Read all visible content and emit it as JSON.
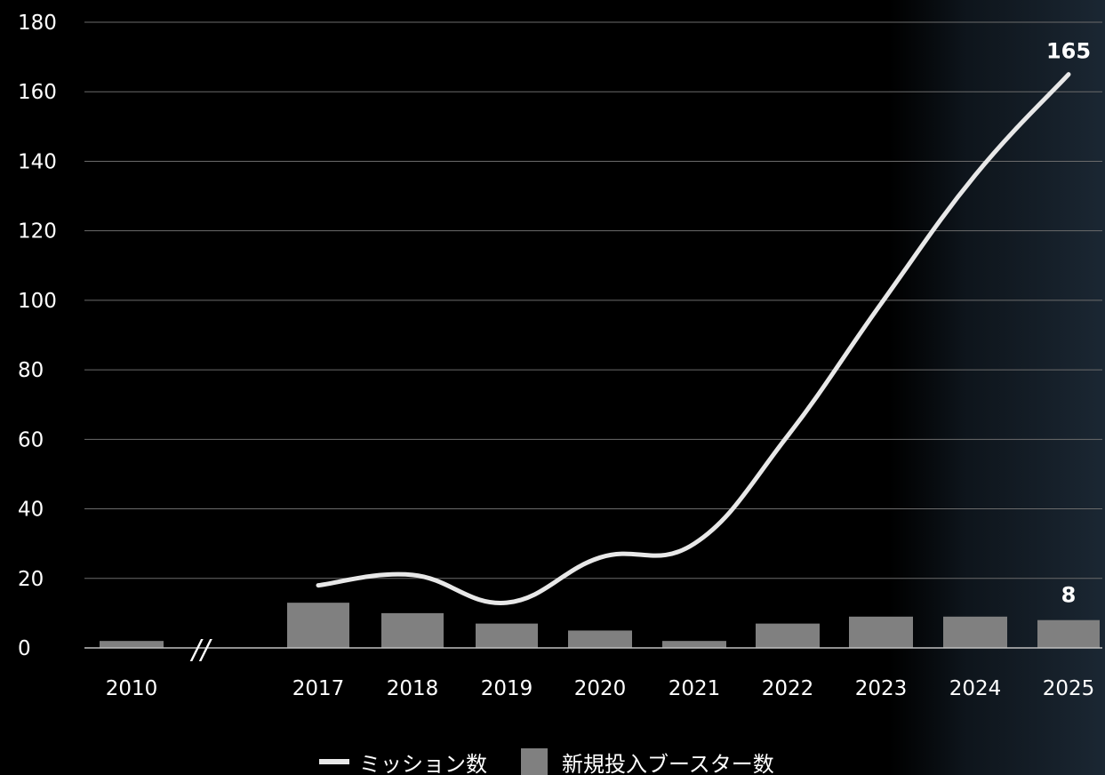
{
  "chart_data": {
    "type": "bar",
    "categories": [
      "2010",
      "2017",
      "2018",
      "2019",
      "2020",
      "2021",
      "2022",
      "2023",
      "2024",
      "2025"
    ],
    "axis_break_after": "2010",
    "ylim": [
      0,
      180
    ],
    "yticks": [
      0,
      20,
      40,
      60,
      80,
      100,
      120,
      140,
      160,
      180
    ],
    "grid": true,
    "legend_position": "bottom",
    "series": [
      {
        "name": "新規投入ブースター数",
        "kind": "bar",
        "color": "#808080",
        "values": [
          2,
          13,
          10,
          7,
          5,
          2,
          7,
          9,
          9,
          8
        ]
      },
      {
        "name": "ミッション数",
        "kind": "line",
        "color": "#e8e8e8",
        "values": [
          null,
          18,
          21,
          13,
          26,
          30,
          61,
          99,
          136,
          165
        ]
      }
    ],
    "data_labels": [
      {
        "series": "ミッション数",
        "category": "2025",
        "text": "165"
      },
      {
        "series": "新規投入ブースター数",
        "category": "2025",
        "text": "8"
      }
    ],
    "axis_break_symbol": "//"
  }
}
